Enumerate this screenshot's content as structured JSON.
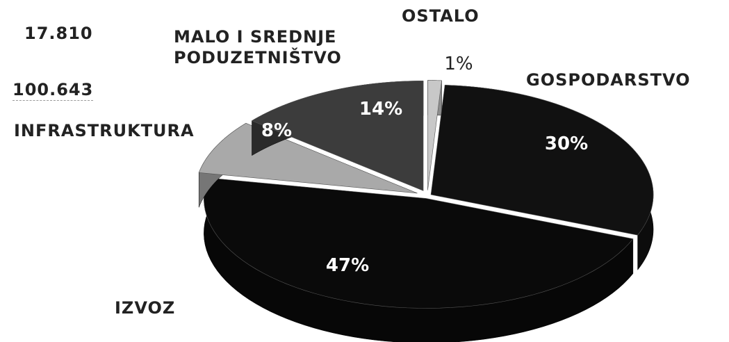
{
  "chart_data": {
    "type": "pie",
    "annotations": [
      "17.810",
      "100.643"
    ],
    "categories": [
      "OSTALO",
      "GOSPODARSTVO",
      "IZVOZ",
      "INFRASTRUKTURA",
      "MALO I SREDNJE PODUZETNIŠTVO"
    ],
    "values": [
      1,
      30,
      47,
      8,
      14
    ],
    "value_labels": [
      "1%",
      "30%",
      "47%",
      "8%",
      "14%"
    ],
    "colors": [
      "#c8c8c8",
      "#111111",
      "#0a0a0a",
      "#a9a9a9",
      "#3c3c3c"
    ]
  }
}
